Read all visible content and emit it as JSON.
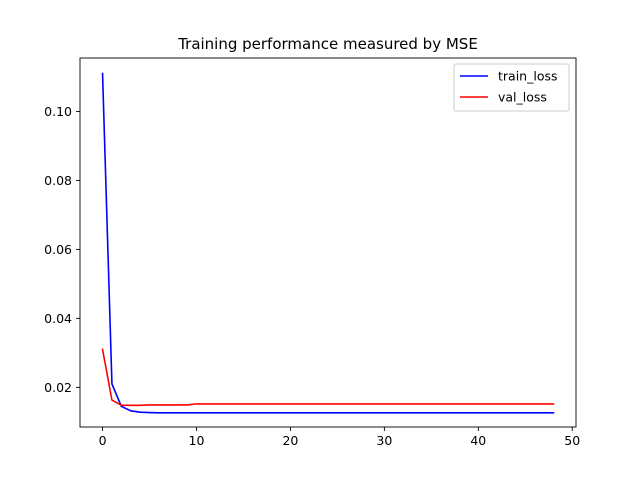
{
  "chart_data": {
    "type": "line",
    "title": "Training performance measured by MSE",
    "xlabel": "",
    "ylabel": "",
    "xlim": [
      -2.4,
      50.4
    ],
    "ylim": [
      0.0085,
      0.1155
    ],
    "x_ticks": [
      0,
      10,
      20,
      30,
      40,
      50
    ],
    "y_ticks": [
      0.02,
      0.04,
      0.06,
      0.08,
      0.1
    ],
    "x_tick_labels": [
      "0",
      "10",
      "20",
      "30",
      "40",
      "50"
    ],
    "y_tick_labels": [
      "0.02",
      "0.04",
      "0.06",
      "0.08",
      "0.10"
    ],
    "grid": false,
    "legend_position": "top-right",
    "x": [
      0,
      1,
      2,
      3,
      4,
      5,
      6,
      7,
      8,
      9,
      10,
      11,
      12,
      13,
      14,
      15,
      16,
      17,
      18,
      19,
      20,
      21,
      22,
      23,
      24,
      25,
      26,
      27,
      28,
      29,
      30,
      31,
      32,
      33,
      34,
      35,
      36,
      37,
      38,
      39,
      40,
      41,
      42,
      43,
      44,
      45,
      46,
      47,
      48
    ],
    "series": [
      {
        "name": "train_loss",
        "color": "#0000ff",
        "values": [
          0.111,
          0.021,
          0.0145,
          0.0132,
          0.0128,
          0.0127,
          0.0126,
          0.0126,
          0.0126,
          0.0126,
          0.0126,
          0.0126,
          0.0126,
          0.0126,
          0.0126,
          0.0126,
          0.0126,
          0.0126,
          0.0126,
          0.0126,
          0.0126,
          0.0126,
          0.0126,
          0.0126,
          0.0126,
          0.0126,
          0.0126,
          0.0126,
          0.0126,
          0.0126,
          0.0126,
          0.0126,
          0.0126,
          0.0126,
          0.0126,
          0.0126,
          0.0126,
          0.0126,
          0.0126,
          0.0126,
          0.0126,
          0.0126,
          0.0126,
          0.0126,
          0.0126,
          0.0126,
          0.0126,
          0.0126,
          0.0126
        ]
      },
      {
        "name": "val_loss",
        "color": "#ff0000",
        "values": [
          0.031,
          0.0163,
          0.0148,
          0.0148,
          0.0148,
          0.0149,
          0.0149,
          0.0149,
          0.0149,
          0.0149,
          0.0152,
          0.0152,
          0.0152,
          0.0152,
          0.0152,
          0.0152,
          0.0152,
          0.0152,
          0.0152,
          0.0152,
          0.0152,
          0.0152,
          0.0152,
          0.0152,
          0.0152,
          0.0152,
          0.0152,
          0.0152,
          0.0152,
          0.0152,
          0.0152,
          0.0152,
          0.0152,
          0.0152,
          0.0152,
          0.0152,
          0.0152,
          0.0152,
          0.0152,
          0.0152,
          0.0152,
          0.0152,
          0.0152,
          0.0152,
          0.0152,
          0.0152,
          0.0152,
          0.0152,
          0.0152
        ]
      }
    ]
  }
}
